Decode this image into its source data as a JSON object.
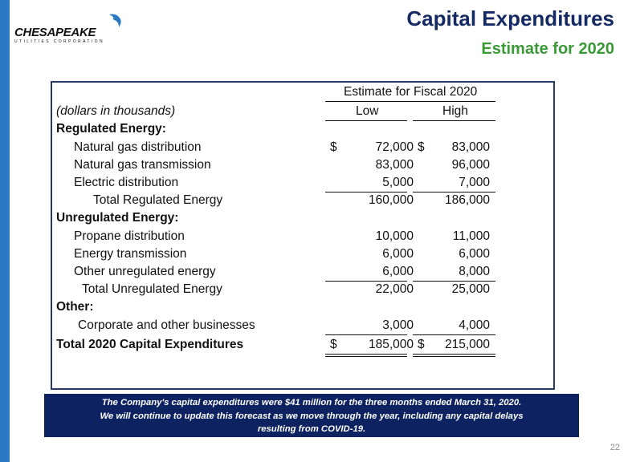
{
  "logo": {
    "name": "CHESAPEAKE",
    "sub": "UTILITIES CORPORATION"
  },
  "title": "Capital Expenditures",
  "subtitle": "Estimate for 2020",
  "table": {
    "header": "Estimate for Fiscal 2020",
    "units": "(dollars in thousands)",
    "col_low": "Low",
    "col_high": "High",
    "rows": [
      {
        "label": "Regulated Energy:",
        "low": "",
        "high": ""
      },
      {
        "label": "Natural gas distribution",
        "low": "72,000",
        "high": "83,000",
        "dollar": "$"
      },
      {
        "label": "Natural gas transmission",
        "low": "83,000",
        "high": "96,000"
      },
      {
        "label": "Electric distribution",
        "low": "5,000",
        "high": "7,000"
      },
      {
        "label": "Total Regulated Energy",
        "low": "160,000",
        "high": "186,000"
      },
      {
        "label": "Unregulated Energy:",
        "low": "",
        "high": ""
      },
      {
        "label": "Propane distribution",
        "low": "10,000",
        "high": "11,000"
      },
      {
        "label": "Energy transmission",
        "low": "6,000",
        "high": "6,000"
      },
      {
        "label": "Other unregulated energy",
        "low": "6,000",
        "high": "8,000"
      },
      {
        "label": "Total Unregulated Energy",
        "low": "22,000",
        "high": "25,000"
      },
      {
        "label": "Other:",
        "low": "",
        "high": ""
      },
      {
        "label": "Corporate and other businesses",
        "low": "3,000",
        "high": "4,000"
      },
      {
        "label": "Total 2020 Capital Expenditures",
        "low": "185,000",
        "high": "215,000",
        "dollar": "$"
      }
    ]
  },
  "banner": {
    "line1": "The Company's capital expenditures were $41 million for the three months ended March 31, 2020.",
    "line2": "We will continue to update this forecast as we move through the year, including any capital delays",
    "line3": "resulting from COVID-19."
  },
  "page_number": "22",
  "colors": {
    "title": "#152a64",
    "subtitle": "#3a9a37",
    "banner": "#0d2260",
    "sidebar": "#2b79c2"
  }
}
